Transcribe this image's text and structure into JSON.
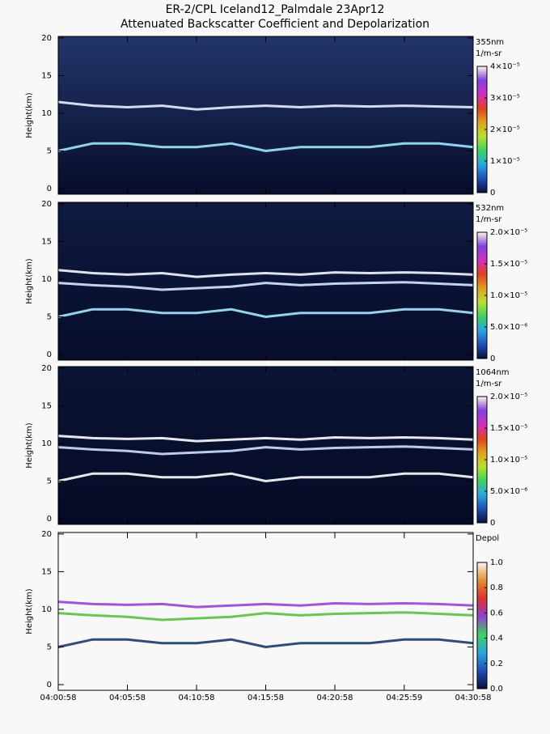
{
  "chart_data": [
    {
      "type": "heatmap",
      "title": "ER-2/CPL Iceland12_Palmdale 23Apr12",
      "subtitle": "Attenuated Backscatter Coefficient and Depolarization",
      "ylabel": "Height(km)",
      "ylim": [
        -0.75,
        20.2
      ],
      "yticks": [
        0,
        5,
        10,
        15,
        20
      ],
      "background": [
        "#22356a",
        "#070d2a"
      ],
      "x": [
        "04:00:58",
        "04:03:28",
        "04:05:58",
        "04:08:28",
        "04:10:58",
        "04:13:28",
        "04:15:58",
        "04:18:28",
        "04:20:58",
        "04:23:28",
        "04:25:58",
        "04:28:28",
        "04:30:58"
      ],
      "series": [
        {
          "color": "#e8f0ff",
          "values": [
            11.5,
            11.0,
            10.8,
            11.0,
            10.5,
            10.8,
            11.0,
            10.8,
            11.0,
            10.9,
            11.0,
            10.9,
            10.8
          ]
        },
        {
          "color": "#9fe8ff",
          "values": [
            5.0,
            6.0,
            6.0,
            5.5,
            5.5,
            6.0,
            5.0,
            5.5,
            5.5,
            5.5,
            6.0,
            6.0,
            5.5
          ]
        }
      ],
      "clabel": [
        "355nm",
        "1/m-sr"
      ],
      "clim": [
        0,
        4e-05
      ],
      "cticks": [
        0,
        {
          "value": 1e-05,
          "label": "1×10⁻⁵"
        },
        {
          "value": 2e-05,
          "label": "2×10⁻⁵"
        },
        {
          "value": 3e-05,
          "label": "3×10⁻⁵"
        },
        {
          "value": 4e-05,
          "label": "4×10⁻⁵"
        }
      ],
      "colormap": [
        "#0a0f3a",
        "#1f4fb8",
        "#2aa7e0",
        "#3fd060",
        "#b8e030",
        "#e0a020",
        "#e04020",
        "#d030c0",
        "#8040e0",
        "#fff4e8"
      ]
    },
    {
      "type": "heatmap",
      "ylabel": "Height(km)",
      "ylim": [
        -0.75,
        20.2
      ],
      "yticks": [
        0,
        5,
        10,
        15,
        20
      ],
      "background": [
        "#0e1a40",
        "#070d2a"
      ],
      "x": [
        "04:00:58",
        "04:03:28",
        "04:05:58",
        "04:08:28",
        "04:10:58",
        "04:13:28",
        "04:15:58",
        "04:18:28",
        "04:20:58",
        "04:23:28",
        "04:25:58",
        "04:28:28",
        "04:30:58"
      ],
      "series": [
        {
          "color": "#f4f8ff",
          "values": [
            11.2,
            10.8,
            10.6,
            10.8,
            10.3,
            10.6,
            10.8,
            10.6,
            10.9,
            10.8,
            10.9,
            10.8,
            10.6
          ]
        },
        {
          "color": "#d8e8ff",
          "values": [
            9.5,
            9.2,
            9.0,
            8.6,
            8.8,
            9.0,
            9.5,
            9.2,
            9.4,
            9.5,
            9.6,
            9.4,
            9.2
          ]
        },
        {
          "color": "#a8e8ff",
          "values": [
            5.0,
            6.0,
            6.0,
            5.5,
            5.5,
            6.0,
            5.0,
            5.5,
            5.5,
            5.5,
            6.0,
            6.0,
            5.5
          ]
        }
      ],
      "clabel": [
        "532nm",
        "1/m-sr"
      ],
      "clim": [
        0,
        2e-05
      ],
      "cticks": [
        0,
        {
          "value": 5e-06,
          "label": "5.0×10⁻⁶"
        },
        {
          "value": 1e-05,
          "label": "1.0×10⁻⁵"
        },
        {
          "value": 1.5e-05,
          "label": "1.5×10⁻⁵"
        },
        {
          "value": 2e-05,
          "label": "2.0×10⁻⁵"
        }
      ],
      "colormap": [
        "#0a0f3a",
        "#1f4fb8",
        "#2aa7e0",
        "#3fd060",
        "#b8e030",
        "#e0a020",
        "#e04020",
        "#d030c0",
        "#8040e0",
        "#fff4e8"
      ]
    },
    {
      "type": "heatmap",
      "ylabel": "Height(km)",
      "ylim": [
        -0.75,
        20.2
      ],
      "yticks": [
        0,
        5,
        10,
        15,
        20
      ],
      "background": [
        "#0a1434",
        "#060b26"
      ],
      "x": [
        "04:00:58",
        "04:03:28",
        "04:05:58",
        "04:08:28",
        "04:10:58",
        "04:13:28",
        "04:15:58",
        "04:18:28",
        "04:20:58",
        "04:23:28",
        "04:25:58",
        "04:28:28",
        "04:30:58"
      ],
      "series": [
        {
          "color": "#ffffff",
          "values": [
            11.0,
            10.7,
            10.6,
            10.7,
            10.3,
            10.5,
            10.7,
            10.5,
            10.8,
            10.7,
            10.8,
            10.7,
            10.5
          ]
        },
        {
          "color": "#d0e0ff",
          "values": [
            9.5,
            9.2,
            9.0,
            8.6,
            8.8,
            9.0,
            9.5,
            9.2,
            9.4,
            9.5,
            9.6,
            9.4,
            9.2
          ]
        },
        {
          "color": "#ffffff",
          "values": [
            5.0,
            6.0,
            6.0,
            5.5,
            5.5,
            6.0,
            5.0,
            5.5,
            5.5,
            5.5,
            6.0,
            6.0,
            5.5
          ]
        }
      ],
      "clabel": [
        "1064nm",
        "1/m-sr"
      ],
      "clim": [
        0,
        2e-05
      ],
      "cticks": [
        0,
        {
          "value": 5e-06,
          "label": "5.0×10⁻⁶"
        },
        {
          "value": 1e-05,
          "label": "1.0×10⁻⁵"
        },
        {
          "value": 1.5e-05,
          "label": "1.5×10⁻⁵"
        },
        {
          "value": 2e-05,
          "label": "2.0×10⁻⁵"
        }
      ],
      "colormap": [
        "#0a0f3a",
        "#1f4fb8",
        "#2aa7e0",
        "#3fd060",
        "#b8e030",
        "#e0a020",
        "#e04020",
        "#d030c0",
        "#8040e0",
        "#fff4e8"
      ]
    },
    {
      "type": "heatmap",
      "ylabel": "Height(km)",
      "ylim": [
        -0.75,
        20.2
      ],
      "yticks": [
        0,
        5,
        10,
        15,
        20
      ],
      "background": [
        "#f8f8f8",
        "#f8f8f8"
      ],
      "x": [
        "04:00:58",
        "04:03:28",
        "04:05:58",
        "04:08:28",
        "04:10:58",
        "04:13:28",
        "04:15:58",
        "04:18:28",
        "04:20:58",
        "04:23:28",
        "04:25:58",
        "04:28:28",
        "04:30:58"
      ],
      "series": [
        {
          "color": "#9a40d0",
          "values": [
            11.0,
            10.7,
            10.6,
            10.7,
            10.3,
            10.5,
            10.7,
            10.5,
            10.8,
            10.7,
            10.8,
            10.7,
            10.5
          ]
        },
        {
          "color": "#5ac040",
          "values": [
            9.5,
            9.2,
            9.0,
            8.6,
            8.8,
            9.0,
            9.5,
            9.2,
            9.4,
            9.5,
            9.6,
            9.4,
            9.2
          ]
        },
        {
          "color": "#1a3a6a",
          "values": [
            5.0,
            6.0,
            6.0,
            5.5,
            5.5,
            6.0,
            5.0,
            5.5,
            5.5,
            5.5,
            6.0,
            6.0,
            5.5
          ]
        }
      ],
      "clabel": [
        "Depol"
      ],
      "clim": [
        0,
        1
      ],
      "cticks": [
        {
          "value": 0,
          "label": "0.0"
        },
        0.2,
        0.4,
        0.6,
        0.8,
        {
          "value": 1,
          "label": "1.0"
        }
      ],
      "colormap": [
        "#0a0f3a",
        "#1f4fb8",
        "#2aa7e0",
        "#3fd060",
        "#9040d0",
        "#e03030",
        "#e09030",
        "#fff4e8"
      ],
      "xlim": [
        "04:00:58",
        "04:30:58"
      ],
      "xticks": [
        "04:00:58",
        "04:05:58",
        "04:10:58",
        "04:15:58",
        "04:20:58",
        "04:25:59",
        "04:30:58"
      ]
    }
  ]
}
